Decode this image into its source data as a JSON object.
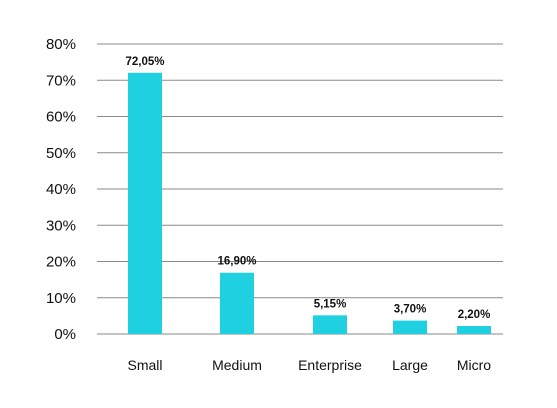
{
  "chart_data": {
    "type": "bar",
    "title": "",
    "xlabel": "",
    "ylabel": "",
    "categories": [
      "Small",
      "Medium",
      "Enterprise",
      "Large",
      "Micro"
    ],
    "values": [
      72.05,
      16.9,
      5.15,
      3.7,
      2.2
    ],
    "data_labels": [
      "72,05%",
      "16,90%",
      "5,15%",
      "3,70%",
      "2,20%"
    ],
    "ylim": [
      0,
      80
    ],
    "yticks": [
      0,
      10,
      20,
      30,
      40,
      50,
      60,
      70,
      80
    ],
    "ytick_labels": [
      "0%",
      "10%",
      "20%",
      "30%",
      "40%",
      "50%",
      "60%",
      "70%",
      "80%"
    ],
    "grid": true,
    "legend": "none",
    "bar_color": "#1fd0e0"
  }
}
